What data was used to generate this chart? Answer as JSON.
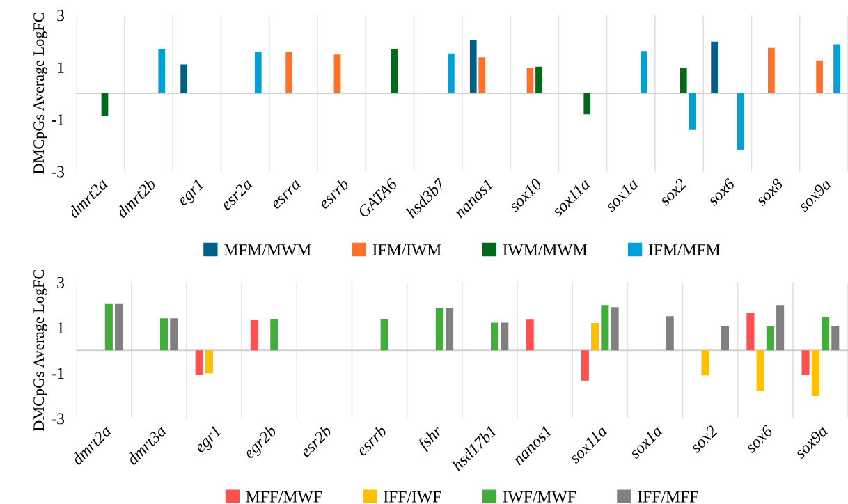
{
  "chart_data": [
    {
      "type": "bar",
      "ylabel": "DMCpGs Average LogFC",
      "ylim": [
        -3,
        3
      ],
      "yticks": [
        -3,
        -1,
        1,
        3
      ],
      "grid": "x",
      "legend": "bottom",
      "categories": [
        "dmrt2a",
        "dmrt2b",
        "egr1",
        "esr2a",
        "esrra",
        "esrrb",
        "GATA6",
        "hsd3b7",
        "nanos1",
        "sox10",
        "sox11a",
        "sox1a",
        "sox2",
        "sox6",
        "sox8",
        "sox9a"
      ],
      "series": [
        {
          "name": "MFM/MWM",
          "color": "#005f86",
          "values": [
            null,
            null,
            1.11,
            null,
            null,
            null,
            null,
            null,
            2.06,
            null,
            null,
            null,
            null,
            1.98,
            null,
            null
          ]
        },
        {
          "name": "IFM/IWM",
          "color": "#ff7128",
          "values": [
            null,
            null,
            null,
            null,
            1.59,
            1.49,
            null,
            null,
            1.38,
            0.99,
            null,
            null,
            null,
            null,
            1.74,
            1.26
          ]
        },
        {
          "name": "IWM/MWM",
          "color": "#006a1a",
          "values": [
            -0.87,
            null,
            null,
            null,
            null,
            null,
            1.71,
            null,
            null,
            1.02,
            -0.81,
            null,
            0.99,
            null,
            null,
            null
          ]
        },
        {
          "name": "IFM/MFM",
          "color": "#00a0d8",
          "values": [
            null,
            1.7,
            null,
            1.59,
            null,
            null,
            null,
            1.53,
            null,
            null,
            null,
            1.62,
            -1.41,
            -2.18,
            null,
            1.88
          ]
        }
      ]
    },
    {
      "type": "bar",
      "ylabel": "DMCpGs Average LogFC",
      "ylim": [
        -3,
        3
      ],
      "yticks": [
        -3,
        -1,
        1,
        3
      ],
      "grid": "x",
      "legend": "bottom",
      "categories": [
        "dmrt2a",
        "dmrt3a",
        "egr1",
        "egr2b",
        "esr2b",
        "esrrb",
        "fshr",
        "hsd17b1",
        "nanos1",
        "sox11a",
        "sox1a",
        "sox2",
        "sox6",
        "sox9a"
      ],
      "series": [
        {
          "name": "MFF/MWF",
          "color": "#ff5050",
          "values": [
            null,
            null,
            -1.08,
            1.34,
            null,
            null,
            null,
            null,
            1.38,
            -1.34,
            null,
            null,
            1.66,
            -1.08
          ]
        },
        {
          "name": "IFF/IWF",
          "color": "#ffc000",
          "values": [
            null,
            null,
            -1.02,
            null,
            null,
            null,
            null,
            null,
            null,
            1.2,
            null,
            -1.11,
            -1.79,
            -2.02
          ]
        },
        {
          "name": "IWF/MWF",
          "color": "#41ad3a",
          "values": [
            2.07,
            1.41,
            null,
            1.39,
            null,
            1.39,
            1.88,
            1.22,
            null,
            1.99,
            null,
            null,
            1.06,
            1.48
          ]
        },
        {
          "name": "IFF/MFF",
          "color": "#808080",
          "values": [
            2.07,
            1.41,
            null,
            null,
            null,
            null,
            1.88,
            1.22,
            null,
            1.9,
            1.5,
            1.06,
            1.99,
            1.08
          ]
        }
      ]
    }
  ]
}
